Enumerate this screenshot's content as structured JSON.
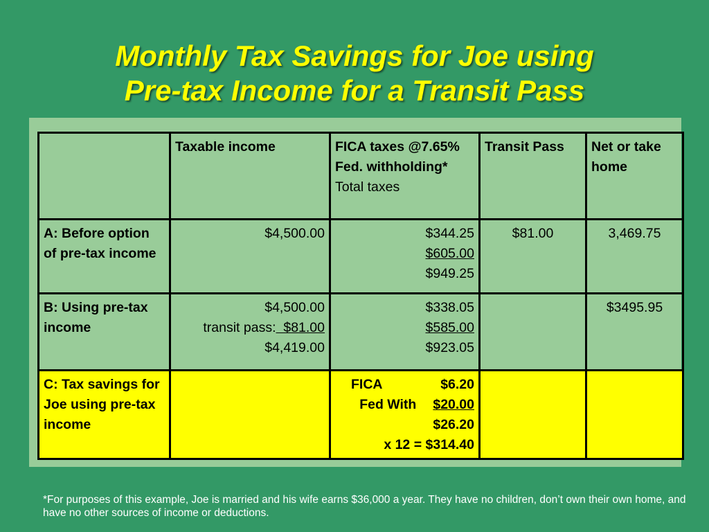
{
  "title": {
    "line1": "Monthly Tax Savings for Joe using",
    "line2": "Pre-tax Income for a Transit Pass"
  },
  "table": {
    "headers": {
      "taxable": "Taxable income",
      "fica_1": "FICA taxes @7.65%",
      "fica_2": "Fed. withholding*",
      "fica_3": "Total taxes",
      "transit": "Transit Pass",
      "net": "Net or take home"
    },
    "row_a": {
      "label": "A: Before option of pre-tax income",
      "taxable": "$4,500.00",
      "fica": "$344.25",
      "fed": "$605.00",
      "total": "$949.25",
      "transit": "$81.00",
      "net": "3,469.75"
    },
    "row_b": {
      "label": "B: Using pre-tax income",
      "taxable": "$4,500.00",
      "transit_label": "transit pass:",
      "transit_amount": "  $81.00",
      "taxable_after": "$4,419.00",
      "fica": "$338.05",
      "fed": "$585.00",
      "total": "$923.05",
      "transit": "",
      "net": "$3495.95"
    },
    "row_c": {
      "label": "C: Tax savings for Joe using pre-tax income",
      "fica_label": "FICA",
      "fica_value": "$6.20",
      "fed_label": "Fed With",
      "fed_value": "$20.00",
      "total": "$26.20",
      "annual": "x 12 = $314.40"
    }
  },
  "footnote": "*For purposes of this example, Joe is married and his wife earns $36,000 a year. They have no children, don’t own their own home, and have no other sources of income or deductions.",
  "colors": {
    "background": "#339966",
    "panel": "#99cc99",
    "title": "#ffff00",
    "highlight_row": "#ffff00"
  }
}
